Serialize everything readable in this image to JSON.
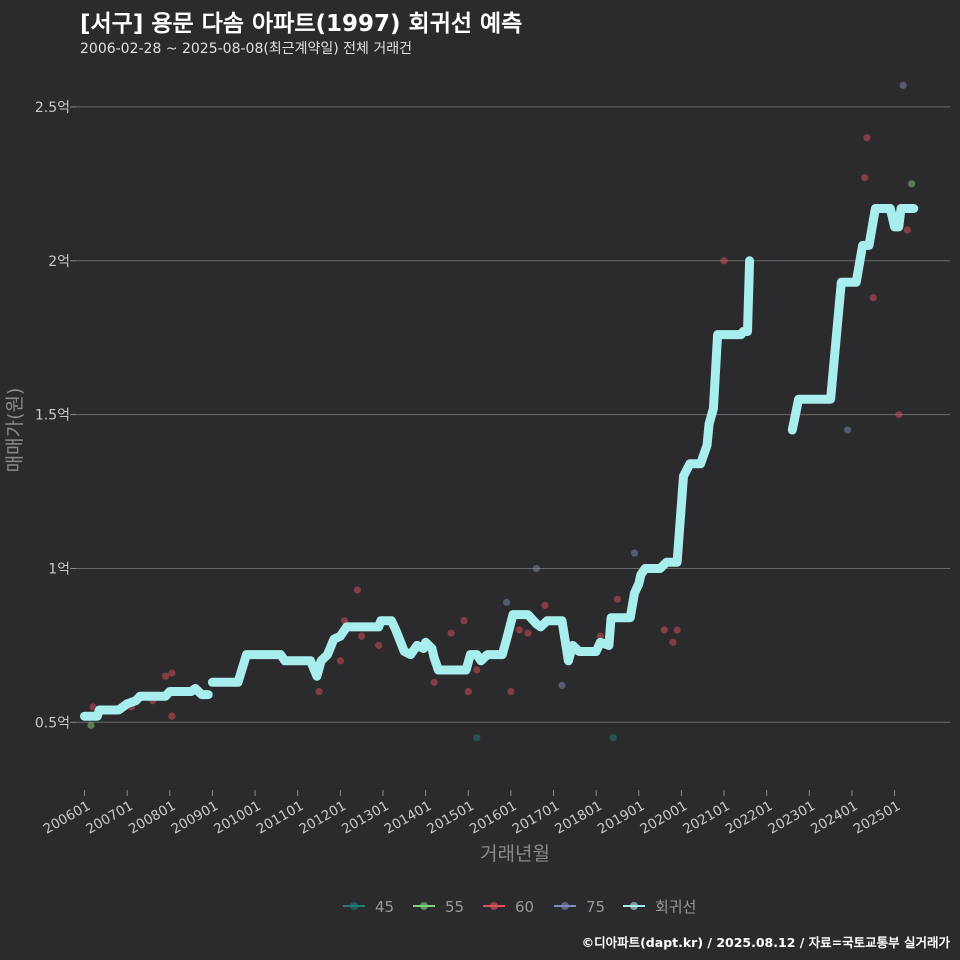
{
  "header": {
    "title": "[서구] 용문 다솜 아파트(1997) 회귀선 예측",
    "subtitle": "2006-02-28 ~ 2025-08-08(최근계약일) 전체 거래건"
  },
  "caption": "©디아파트(dapt.kr) / 2025.08.12 / 자료=국토교통부 실거래가",
  "colors": {
    "background": "#2b2b2d",
    "grid": "#6a6a6a",
    "s45": "#1e7f78",
    "s55": "#7ed47a",
    "s60": "#e0505c",
    "s75": "#7f8cb8",
    "regression": "#a8eeee"
  },
  "chart_data": {
    "type": "scatter",
    "title": "[서구] 용문 다솜 아파트(1997) 회귀선 예측",
    "xlabel": "거래년월",
    "ylabel": "매매가(원)",
    "ylim": [
      0.28,
      2.62
    ],
    "y_unit": "억",
    "xlim": [
      2005.8,
      2026.3
    ],
    "x_ticks": [
      {
        "label": "200601",
        "x": 2006.0
      },
      {
        "label": "200701",
        "x": 2007.0
      },
      {
        "label": "200801",
        "x": 2008.0
      },
      {
        "label": "200901",
        "x": 2009.0
      },
      {
        "label": "201001",
        "x": 2010.0
      },
      {
        "label": "201101",
        "x": 2011.0
      },
      {
        "label": "201201",
        "x": 2012.0
      },
      {
        "label": "201301",
        "x": 2013.0
      },
      {
        "label": "201401",
        "x": 2014.0
      },
      {
        "label": "201501",
        "x": 2015.0
      },
      {
        "label": "201601",
        "x": 2016.0
      },
      {
        "label": "201701",
        "x": 2017.0
      },
      {
        "label": "201801",
        "x": 2018.0
      },
      {
        "label": "201901",
        "x": 2019.0
      },
      {
        "label": "202001",
        "x": 2020.0
      },
      {
        "label": "202101",
        "x": 2021.0
      },
      {
        "label": "202201",
        "x": 2022.0
      },
      {
        "label": "202301",
        "x": 2023.0
      },
      {
        "label": "202401",
        "x": 2024.0
      },
      {
        "label": "202501",
        "x": 2025.0
      }
    ],
    "y_ticks": [
      {
        "label": "0.5억",
        "y": 0.5
      },
      {
        "label": "1억",
        "y": 1.0
      },
      {
        "label": "1.5억",
        "y": 1.5
      },
      {
        "label": "2억",
        "y": 2.0
      },
      {
        "label": "2.5억",
        "y": 2.5
      }
    ],
    "legend": [
      {
        "name": "45",
        "color": "#1e7f78"
      },
      {
        "name": "55",
        "color": "#7ed47a"
      },
      {
        "name": "60",
        "color": "#e0505c"
      },
      {
        "name": "75",
        "color": "#7f8cb8"
      },
      {
        "name": "회귀선",
        "color": "#a8eeee"
      }
    ],
    "series": [
      {
        "name": "45",
        "color": "#1e7f78",
        "points": [
          [
            2015.2,
            0.45
          ],
          [
            2018.4,
            0.45
          ]
        ]
      },
      {
        "name": "55",
        "color": "#7ed47a",
        "points": [
          [
            2006.15,
            0.49
          ],
          [
            2025.4,
            2.25
          ]
        ]
      },
      {
        "name": "60",
        "color": "#e0505c",
        "points": [
          [
            2006.2,
            0.55
          ],
          [
            2007.1,
            0.55
          ],
          [
            2007.6,
            0.57
          ],
          [
            2007.9,
            0.65
          ],
          [
            2008.05,
            0.66
          ],
          [
            2008.05,
            0.52
          ],
          [
            2011.5,
            0.6
          ],
          [
            2012.0,
            0.7
          ],
          [
            2012.1,
            0.83
          ],
          [
            2012.4,
            0.93
          ],
          [
            2012.5,
            0.78
          ],
          [
            2012.9,
            0.75
          ],
          [
            2014.2,
            0.63
          ],
          [
            2014.6,
            0.79
          ],
          [
            2014.9,
            0.83
          ],
          [
            2015.0,
            0.6
          ],
          [
            2015.2,
            0.67
          ],
          [
            2016.0,
            0.6
          ],
          [
            2016.2,
            0.8
          ],
          [
            2016.4,
            0.79
          ],
          [
            2016.8,
            0.88
          ],
          [
            2018.1,
            0.78
          ],
          [
            2018.5,
            0.9
          ],
          [
            2019.6,
            0.8
          ],
          [
            2019.8,
            0.76
          ],
          [
            2019.9,
            0.8
          ],
          [
            2021.0,
            2.0
          ],
          [
            2024.3,
            2.27
          ],
          [
            2024.35,
            2.4
          ],
          [
            2024.5,
            1.88
          ],
          [
            2025.1,
            1.5
          ],
          [
            2025.3,
            2.1
          ]
        ]
      },
      {
        "name": "75",
        "color": "#7f8cb8",
        "points": [
          [
            2015.9,
            0.89
          ],
          [
            2016.6,
            1.0
          ],
          [
            2017.2,
            0.62
          ],
          [
            2018.9,
            1.05
          ],
          [
            2023.9,
            1.45
          ],
          [
            2025.2,
            2.57
          ]
        ]
      }
    ],
    "regression_segments": [
      [
        [
          2006.0,
          0.52
        ],
        [
          2006.3,
          0.52
        ],
        [
          2006.35,
          0.54
        ],
        [
          2006.8,
          0.54
        ],
        [
          2007.0,
          0.56
        ],
        [
          2007.2,
          0.57
        ],
        [
          2007.3,
          0.585
        ],
        [
          2007.9,
          0.585
        ],
        [
          2008.0,
          0.6
        ],
        [
          2008.5,
          0.6
        ],
        [
          2008.6,
          0.61
        ],
        [
          2008.75,
          0.59
        ],
        [
          2008.9,
          0.59
        ]
      ],
      [
        [
          2009.0,
          0.63
        ],
        [
          2009.6,
          0.63
        ],
        [
          2009.8,
          0.72
        ],
        [
          2010.6,
          0.72
        ],
        [
          2010.7,
          0.7
        ],
        [
          2011.3,
          0.7
        ],
        [
          2011.45,
          0.65
        ],
        [
          2011.55,
          0.7
        ],
        [
          2011.7,
          0.72
        ],
        [
          2011.85,
          0.77
        ],
        [
          2012.0,
          0.78
        ],
        [
          2012.15,
          0.81
        ],
        [
          2012.9,
          0.81
        ],
        [
          2012.95,
          0.83
        ],
        [
          2013.2,
          0.83
        ],
        [
          2013.3,
          0.8
        ],
        [
          2013.5,
          0.73
        ],
        [
          2013.65,
          0.72
        ],
        [
          2013.8,
          0.75
        ],
        [
          2013.95,
          0.74
        ],
        [
          2014.0,
          0.76
        ],
        [
          2014.15,
          0.74
        ],
        [
          2014.2,
          0.71
        ],
        [
          2014.3,
          0.67
        ],
        [
          2014.95,
          0.67
        ],
        [
          2015.05,
          0.72
        ],
        [
          2015.2,
          0.72
        ],
        [
          2015.3,
          0.7
        ],
        [
          2015.45,
          0.72
        ],
        [
          2015.8,
          0.72
        ],
        [
          2015.9,
          0.77
        ],
        [
          2016.05,
          0.85
        ],
        [
          2016.4,
          0.85
        ],
        [
          2016.6,
          0.82
        ],
        [
          2016.7,
          0.81
        ],
        [
          2016.85,
          0.83
        ],
        [
          2017.2,
          0.83
        ],
        [
          2017.35,
          0.7
        ],
        [
          2017.45,
          0.75
        ],
        [
          2017.6,
          0.73
        ],
        [
          2018.0,
          0.73
        ],
        [
          2018.1,
          0.76
        ],
        [
          2018.3,
          0.75
        ],
        [
          2018.35,
          0.84
        ],
        [
          2018.8,
          0.84
        ],
        [
          2018.9,
          0.92
        ],
        [
          2019.0,
          0.95
        ],
        [
          2019.05,
          0.98
        ],
        [
          2019.15,
          1.0
        ],
        [
          2019.5,
          1.0
        ],
        [
          2019.65,
          1.02
        ],
        [
          2019.9,
          1.02
        ],
        [
          2020.05,
          1.3
        ],
        [
          2020.2,
          1.34
        ],
        [
          2020.45,
          1.34
        ],
        [
          2020.6,
          1.4
        ],
        [
          2020.65,
          1.47
        ],
        [
          2020.75,
          1.52
        ],
        [
          2020.85,
          1.76
        ],
        [
          2021.4,
          1.76
        ],
        [
          2021.45,
          1.77
        ],
        [
          2021.55,
          1.77
        ],
        [
          2021.6,
          2.0
        ]
      ],
      [
        [
          2022.6,
          1.45
        ],
        [
          2022.75,
          1.55
        ],
        [
          2023.5,
          1.55
        ],
        [
          2023.75,
          1.93
        ],
        [
          2024.1,
          1.93
        ],
        [
          2024.25,
          2.05
        ],
        [
          2024.4,
          2.05
        ],
        [
          2024.55,
          2.17
        ],
        [
          2024.9,
          2.17
        ],
        [
          2025.0,
          2.11
        ],
        [
          2025.1,
          2.11
        ],
        [
          2025.15,
          2.17
        ],
        [
          2025.45,
          2.17
        ]
      ]
    ]
  }
}
